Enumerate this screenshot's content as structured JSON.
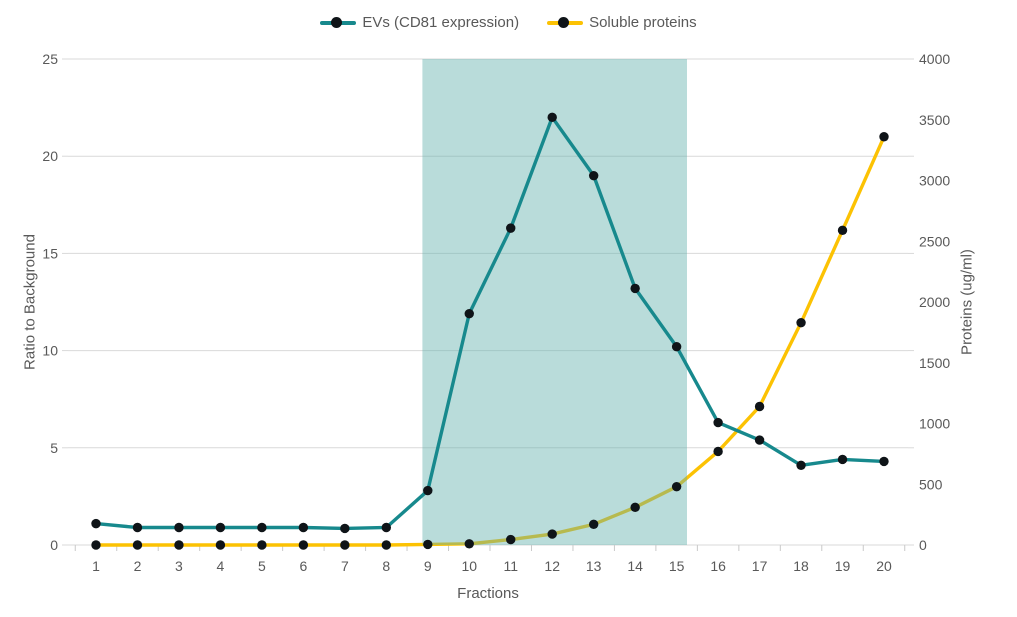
{
  "legend": {
    "series1": "EVs (CD81 expression)",
    "series2": "Soluble proteins"
  },
  "chart_data": {
    "type": "line",
    "title": "",
    "xlabel": "Fractions",
    "ylabel_left": "Ratio to Background",
    "ylabel_right": "Proteins (ug/ml)",
    "categories": [
      1,
      2,
      3,
      4,
      5,
      6,
      7,
      8,
      9,
      10,
      11,
      12,
      13,
      14,
      15,
      16,
      17,
      18,
      19,
      20
    ],
    "series": [
      {
        "name": "EVs (CD81 expression)",
        "axis": "left",
        "color": "#17898d",
        "values": [
          1.1,
          0.9,
          0.9,
          0.9,
          0.9,
          0.9,
          0.85,
          0.9,
          2.8,
          11.9,
          16.3,
          22.0,
          19.0,
          13.2,
          10.2,
          6.3,
          5.4,
          4.1,
          4.4,
          4.3
        ]
      },
      {
        "name": "Soluble proteins",
        "axis": "right",
        "color": "#fcc203",
        "values": [
          0,
          0,
          0,
          0,
          0,
          0,
          0,
          0,
          5,
          10,
          45,
          90,
          170,
          310,
          480,
          770,
          1140,
          1830,
          2590,
          3360
        ]
      }
    ],
    "left_axis": {
      "min": 0,
      "max": 25,
      "ticks": [
        0,
        5,
        10,
        15,
        20,
        25
      ]
    },
    "right_axis": {
      "min": 0,
      "max": 4000,
      "ticks": [
        0,
        500,
        1000,
        1500,
        2000,
        2500,
        3000,
        3500,
        4000
      ]
    },
    "highlight_region": {
      "from_fraction": 8.87,
      "to_fraction": 15.25,
      "color": "#63b1ad",
      "opacity": 0.45
    },
    "grid": true,
    "legend_position": "top",
    "marker_color": "#0f1418",
    "grid_color": "#d9d9d9",
    "tick_mark_color": "#c9c9c9",
    "text_color": "#595959"
  }
}
